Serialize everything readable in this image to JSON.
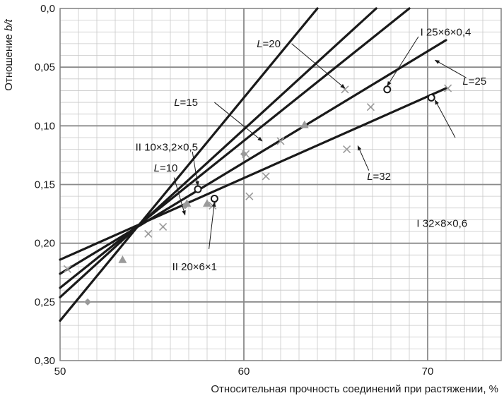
{
  "chart_data": {
    "type": "line",
    "xlabel": "Относительная прочность соединений при растяжении, %",
    "ylabel": "Отношение b/t",
    "xlim": [
      50,
      74
    ],
    "ylim": [
      0.3,
      0.0
    ],
    "y_inverted": true,
    "x_ticks": [
      "50",
      "60",
      "70"
    ],
    "x_tick_values": [
      50,
      60,
      70
    ],
    "y_ticks": [
      "0,0",
      "0,05",
      "0,10",
      "0,15",
      "0,20",
      "0,25",
      "0,30"
    ],
    "y_tick_values": [
      0.0,
      0.05,
      0.1,
      0.15,
      0.2,
      0.25,
      0.3
    ],
    "grid": true,
    "series": [
      {
        "name": "L=10",
        "x": [
          50.0,
          64.0
        ],
        "y": [
          0.266,
          0.0
        ]
      },
      {
        "name": "L=15",
        "x": [
          50.0,
          67.2
        ],
        "y": [
          0.246,
          0.0
        ]
      },
      {
        "name": "L=20",
        "x": [
          50.0,
          69.0
        ],
        "y": [
          0.238,
          0.0
        ]
      },
      {
        "name": "L=25",
        "x": [
          50.0,
          71.0
        ],
        "y": [
          0.226,
          0.027
        ]
      },
      {
        "name": "L=32",
        "x": [
          50.0,
          71.0
        ],
        "y": [
          0.214,
          0.068
        ]
      }
    ],
    "markers_open": [
      {
        "x": 57.5,
        "y": 0.154
      },
      {
        "x": 58.4,
        "y": 0.162
      },
      {
        "x": 67.8,
        "y": 0.069
      },
      {
        "x": 70.2,
        "y": 0.076
      }
    ],
    "markers_cross": [
      {
        "x": 50.4,
        "y": 0.222
      },
      {
        "x": 54.8,
        "y": 0.192
      },
      {
        "x": 55.6,
        "y": 0.186
      },
      {
        "x": 58.3,
        "y": 0.168
      },
      {
        "x": 60.1,
        "y": 0.124
      },
      {
        "x": 60.3,
        "y": 0.16
      },
      {
        "x": 61.2,
        "y": 0.143
      },
      {
        "x": 62.0,
        "y": 0.113
      },
      {
        "x": 65.5,
        "y": 0.069
      },
      {
        "x": 65.6,
        "y": 0.12
      },
      {
        "x": 66.9,
        "y": 0.084
      },
      {
        "x": 71.1,
        "y": 0.068
      }
    ],
    "markers_diamond": [
      {
        "x": 51.5,
        "y": 0.25
      },
      {
        "x": 56.8,
        "y": 0.168
      },
      {
        "x": 60.0,
        "y": 0.124
      }
    ],
    "markers_triangle": [
      {
        "x": 53.4,
        "y": 0.214
      },
      {
        "x": 56.9,
        "y": 0.166
      },
      {
        "x": 58.0,
        "y": 0.166
      },
      {
        "x": 63.3,
        "y": 0.099
      }
    ],
    "annotations": [
      {
        "id": "l10",
        "parts": [
          [
            "L",
            true
          ],
          [
            "=10",
            false
          ]
        ],
        "text_x": 55.1,
        "text_y": 0.136,
        "anchor": "start",
        "arrow_from": [
          56.2,
          0.144
        ],
        "arrow_to": [
          56.8,
          0.176
        ]
      },
      {
        "id": "l15",
        "parts": [
          [
            "L",
            true
          ],
          [
            "=15",
            false
          ]
        ],
        "text_x": 56.2,
        "text_y": 0.08,
        "anchor": "start",
        "arrow_from": [
          58.4,
          0.08
        ],
        "arrow_to": [
          61.0,
          0.113
        ]
      },
      {
        "id": "l20",
        "parts": [
          [
            "L",
            true
          ],
          [
            "=20",
            false
          ]
        ],
        "text_x": 60.7,
        "text_y": 0.03,
        "anchor": "start",
        "arrow_from": [
          62.6,
          0.03
        ],
        "arrow_to": [
          65.5,
          0.068
        ]
      },
      {
        "id": "l25",
        "parts": [
          [
            "L",
            true
          ],
          [
            "=25",
            false
          ]
        ],
        "text_x": 71.9,
        "text_y": 0.062,
        "anchor": "start",
        "arrow_from": [
          72.1,
          0.059
        ],
        "arrow_to": [
          70.4,
          0.044
        ]
      },
      {
        "id": "l32",
        "parts": [
          [
            "L",
            true
          ],
          [
            "=32",
            false
          ]
        ],
        "text_x": 66.7,
        "text_y": 0.143,
        "anchor": "start",
        "arrow_from": [
          66.8,
          0.138
        ],
        "arrow_to": [
          66.2,
          0.117
        ]
      },
      {
        "id": "i25",
        "parts": [
          [
            "I  25×6×0,4",
            false
          ]
        ],
        "text_x": 69.6,
        "text_y": 0.02,
        "anchor": "start",
        "arrow_from": [
          69.5,
          0.024
        ],
        "arrow_to": [
          67.8,
          0.066
        ]
      },
      {
        "id": "i32",
        "parts": [
          [
            "I  32×8×0,6",
            false
          ]
        ],
        "text_x": 69.4,
        "text_y": 0.183,
        "anchor": "start",
        "arrow_from": [
          71.5,
          0.11
        ],
        "arrow_to": [
          70.4,
          0.078
        ]
      },
      {
        "id": "ii10",
        "parts": [
          [
            "II  10×3,2×0,5",
            false
          ]
        ],
        "text_x": 54.1,
        "text_y": 0.118,
        "anchor": "start",
        "arrow_from": [
          57.2,
          0.122
        ],
        "arrow_to": [
          57.5,
          0.151
        ]
      },
      {
        "id": "ii20",
        "parts": [
          [
            "II  20×6×1",
            false
          ]
        ],
        "text_x": 56.1,
        "text_y": 0.22,
        "anchor": "start",
        "arrow_from": [
          58.1,
          0.205
        ],
        "arrow_to": [
          58.4,
          0.165
        ]
      }
    ]
  }
}
